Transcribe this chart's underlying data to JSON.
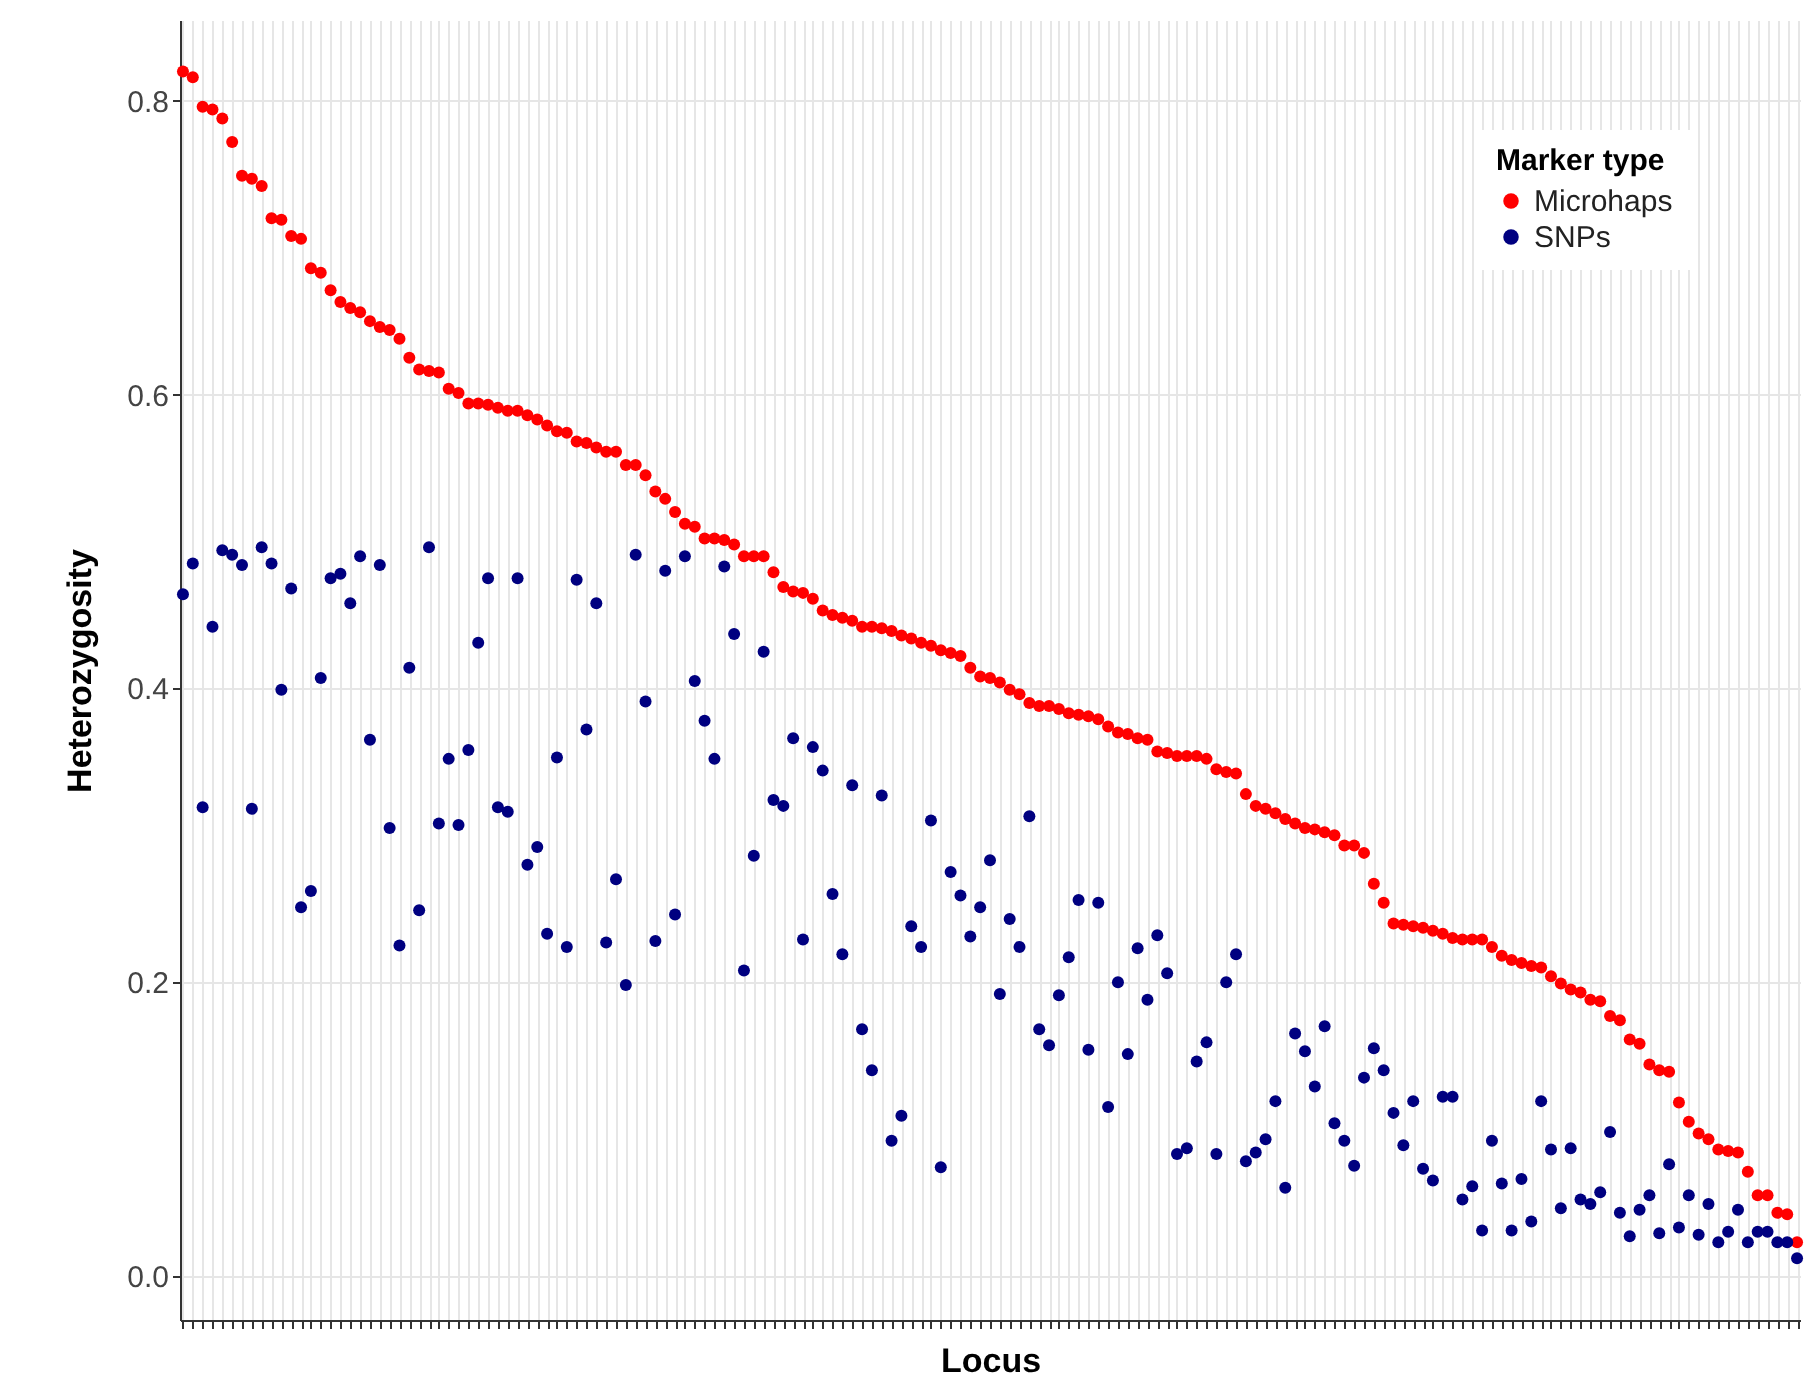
{
  "chart_data": {
    "type": "scatter",
    "xlabel": "Locus",
    "ylabel": "Heterozygosity",
    "legend_title": "Marker type",
    "legend": "top right",
    "grid": true,
    "marker": "circle",
    "tick_labels": "y",
    "ylim": [
      -0.03,
      0.855
    ],
    "yticks": [
      {
        "value": 0,
        "label": "0.0"
      },
      {
        "value": 0.2,
        "label": "0.2"
      },
      {
        "value": 0.4,
        "label": "0.4"
      },
      {
        "value": 0.6,
        "label": "0.6"
      },
      {
        "value": 0.8,
        "label": "0.8"
      }
    ],
    "categories": [
      null,
      null,
      null,
      null,
      null,
      null,
      null,
      null,
      null,
      null,
      null,
      null,
      null,
      null,
      null,
      null,
      null,
      null,
      null,
      null,
      null,
      null,
      null,
      null,
      null,
      null,
      null,
      null,
      null,
      null,
      null,
      null,
      null,
      null,
      null,
      null,
      null,
      null,
      null,
      null,
      null,
      null,
      null,
      null,
      null,
      null,
      null,
      null,
      null,
      null,
      null,
      null,
      null,
      null,
      null,
      null,
      null,
      null,
      null,
      null,
      null,
      null,
      null,
      null,
      null,
      null,
      null,
      null,
      null,
      null,
      null,
      null,
      null,
      null,
      null,
      null,
      null,
      null,
      null,
      null,
      null,
      null,
      null,
      null,
      null,
      null,
      null,
      null,
      null,
      null,
      null,
      null,
      null,
      null,
      null,
      null,
      null,
      null,
      null,
      null,
      null,
      null,
      null,
      null,
      null,
      null,
      null,
      null,
      null,
      null,
      null,
      null,
      null,
      null,
      null,
      null,
      null,
      null,
      null,
      null,
      null,
      null,
      null,
      null,
      null,
      null,
      null,
      null,
      null,
      null,
      null,
      null,
      null,
      null,
      null,
      null,
      null,
      null,
      null,
      null,
      null,
      null,
      null,
      null,
      null,
      null,
      null,
      null,
      null,
      null,
      null,
      null,
      null,
      null,
      null,
      null,
      null,
      null,
      null,
      null,
      null,
      null,
      null,
      null,
      null
    ],
    "series": [
      {
        "name": "Microhaps",
        "color": "#ff0000",
        "values": [
          0.82,
          0.816,
          0.796,
          0.794,
          0.788,
          0.772,
          0.749,
          0.747,
          0.742,
          0.72,
          0.719,
          0.708,
          0.706,
          0.686,
          0.683,
          0.671,
          0.663,
          0.659,
          0.656,
          0.65,
          0.646,
          0.644,
          0.638,
          0.625,
          0.617,
          0.616,
          0.615,
          0.604,
          0.601,
          0.594,
          0.594,
          0.593,
          0.591,
          0.589,
          0.589,
          0.586,
          0.583,
          0.579,
          0.575,
          0.574,
          0.568,
          0.567,
          0.564,
          0.561,
          0.561,
          0.552,
          0.552,
          0.545,
          0.534,
          0.529,
          0.52,
          0.512,
          0.51,
          0.502,
          0.502,
          0.501,
          0.498,
          0.49,
          0.49,
          0.49,
          0.479,
          0.469,
          0.466,
          0.465,
          0.461,
          0.453,
          0.45,
          0.448,
          0.446,
          0.442,
          0.442,
          0.441,
          0.439,
          0.436,
          0.434,
          0.431,
          0.429,
          0.426,
          0.424,
          0.422,
          0.414,
          0.408,
          0.407,
          0.404,
          0.399,
          0.396,
          0.39,
          0.388,
          0.388,
          0.386,
          0.383,
          0.382,
          0.381,
          0.379,
          0.374,
          0.37,
          0.369,
          0.366,
          0.365,
          0.357,
          0.356,
          0.354,
          0.354,
          0.354,
          0.352,
          0.345,
          0.343,
          0.342,
          0.328,
          0.32,
          0.318,
          0.315,
          0.311,
          0.308,
          0.305,
          0.304,
          0.302,
          0.3,
          0.293,
          0.293,
          0.288,
          0.267,
          0.254,
          0.24,
          0.239,
          0.238,
          0.237,
          0.235,
          0.233,
          0.23,
          0.229,
          0.229,
          0.229,
          0.224,
          0.218,
          0.215,
          0.213,
          0.211,
          0.21,
          0.204,
          0.199,
          0.195,
          0.193,
          0.188,
          0.187,
          0.177,
          0.174,
          0.161,
          0.158,
          0.144,
          0.14,
          0.139,
          0.118,
          0.105,
          0.097,
          0.093,
          0.086,
          0.085,
          0.084,
          0.071,
          0.055,
          0.055,
          0.043,
          0.042,
          0.023
        ]
      },
      {
        "name": "SNPs",
        "color": "#000080",
        "values": [
          0.464,
          0.485,
          0.319,
          0.442,
          0.494,
          0.491,
          0.484,
          0.318,
          0.496,
          0.485,
          0.399,
          0.468,
          0.251,
          0.262,
          0.407,
          0.475,
          0.478,
          0.458,
          0.49,
          0.365,
          0.484,
          0.305,
          0.225,
          0.414,
          0.249,
          0.496,
          0.308,
          0.352,
          0.307,
          0.358,
          0.431,
          0.475,
          0.319,
          0.316,
          0.475,
          0.28,
          0.292,
          0.233,
          0.353,
          0.224,
          0.474,
          0.372,
          0.458,
          0.227,
          0.27,
          0.198,
          0.491,
          0.391,
          0.228,
          0.48,
          0.246,
          0.49,
          0.405,
          0.378,
          0.352,
          0.483,
          0.437,
          0.208,
          0.286,
          0.425,
          0.324,
          0.32,
          0.366,
          0.229,
          0.36,
          0.344,
          0.26,
          0.219,
          0.334,
          0.168,
          0.14,
          0.327,
          0.092,
          0.109,
          0.238,
          0.224,
          0.31,
          0.074,
          0.275,
          0.259,
          0.231,
          0.251,
          0.283,
          0.192,
          0.243,
          0.224,
          0.313,
          0.168,
          0.157,
          0.191,
          0.217,
          0.256,
          0.154,
          0.254,
          0.115,
          0.2,
          0.151,
          0.223,
          0.188,
          0.232,
          0.206,
          0.083,
          0.087,
          0.146,
          0.159,
          0.083,
          0.2,
          0.219,
          0.078,
          0.084,
          0.093,
          0.119,
          0.06,
          0.165,
          0.153,
          0.129,
          0.17,
          0.104,
          0.092,
          0.075,
          0.135,
          0.155,
          0.14,
          0.111,
          0.089,
          0.119,
          0.073,
          0.065,
          0.122,
          0.122,
          0.052,
          0.061,
          0.031,
          0.092,
          0.063,
          0.031,
          0.066,
          0.037,
          0.119,
          0.086,
          0.046,
          0.087,
          0.052,
          0.049,
          0.057,
          0.098,
          0.043,
          0.027,
          0.045,
          0.055,
          0.029,
          0.076,
          0.033,
          0.055,
          0.028,
          0.049,
          0.023,
          0.03,
          0.045,
          0.023,
          0.03,
          0.03,
          0.023,
          0.023,
          0.012
        ]
      }
    ]
  }
}
